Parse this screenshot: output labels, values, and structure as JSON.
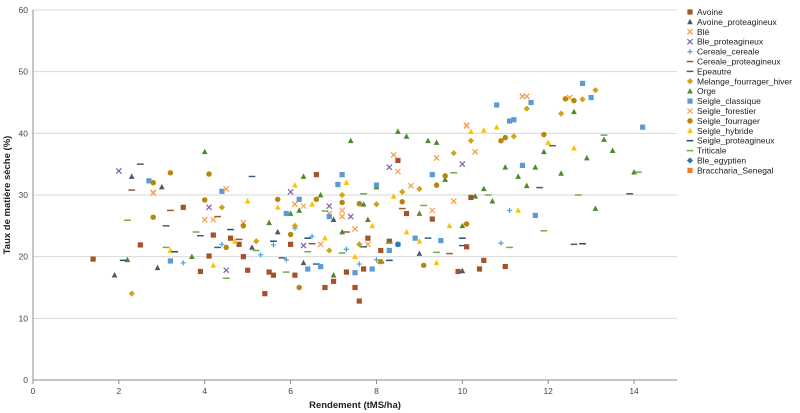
{
  "chart_data": {
    "type": "scatter",
    "xlabel": "Rendement (tMS/ha)",
    "ylabel": "Taux de matière sèche (%)",
    "xlim": [
      0,
      15
    ],
    "ylim": [
      0,
      60
    ],
    "x_ticks": [
      "0",
      "2",
      "4",
      "6",
      "8",
      "10",
      "12",
      "14"
    ],
    "y_ticks": [
      "0",
      "10",
      "20",
      "30",
      "40",
      "50",
      "60"
    ],
    "grid": "horizontal",
    "legend_position": "right",
    "series": [
      {
        "name": "Avoine",
        "color": "#a5522a",
        "marker": "square",
        "points": [
          [
            1.4,
            19.6
          ],
          [
            2.5,
            21.9
          ],
          [
            3.9,
            17.6
          ],
          [
            4.1,
            20.1
          ],
          [
            4.2,
            23.5
          ],
          [
            4.6,
            23.0
          ],
          [
            4.9,
            20.0
          ],
          [
            5.0,
            17.8
          ],
          [
            5.4,
            14.0
          ],
          [
            5.5,
            17.5
          ],
          [
            5.6,
            17.0
          ],
          [
            6.0,
            22.0
          ],
          [
            6.1,
            17.0
          ],
          [
            6.6,
            33.3
          ],
          [
            6.8,
            15.0
          ],
          [
            7.0,
            16.0
          ],
          [
            7.5,
            15.0
          ],
          [
            7.6,
            12.8
          ],
          [
            7.7,
            18.0
          ],
          [
            7.8,
            23.0
          ],
          [
            8.1,
            21.0
          ],
          [
            8.5,
            35.6
          ],
          [
            8.7,
            27.0
          ],
          [
            9.3,
            26.1
          ],
          [
            9.9,
            17.6
          ],
          [
            10.1,
            21.6
          ],
          [
            10.2,
            29.6
          ],
          [
            10.4,
            18.0
          ],
          [
            10.5,
            19.4
          ],
          [
            11.0,
            18.4
          ],
          [
            4.8,
            22.0
          ],
          [
            3.5,
            28.0
          ],
          [
            7.3,
            17.5
          ],
          [
            8.3,
            22.5
          ]
        ]
      },
      {
        "name": "Avoine_proteagineux",
        "color": "#4d5a6e",
        "marker": "triangle",
        "points": [
          [
            1.9,
            17.0
          ],
          [
            2.3,
            33.0
          ],
          [
            2.9,
            18.2
          ],
          [
            3.0,
            31.3
          ],
          [
            5.7,
            24.0
          ],
          [
            6.3,
            19.0
          ],
          [
            7.0,
            26.0
          ],
          [
            9.0,
            20.5
          ],
          [
            10.0,
            17.7
          ],
          [
            5.1,
            21.5
          ]
        ]
      },
      {
        "name": "Blé",
        "color": "#f59a3a",
        "marker": "x",
        "points": [
          [
            2.8,
            30.4
          ],
          [
            4.0,
            26.0
          ],
          [
            4.5,
            31.0
          ],
          [
            4.9,
            25.5
          ],
          [
            6.1,
            28.5
          ],
          [
            6.7,
            22.0
          ],
          [
            6.9,
            27.0
          ],
          [
            7.2,
            26.5
          ],
          [
            7.8,
            22.0
          ],
          [
            8.4,
            36.5
          ],
          [
            8.8,
            31.5
          ],
          [
            9.4,
            36.0
          ],
          [
            10.1,
            41.3
          ],
          [
            10.3,
            37.0
          ],
          [
            11.5,
            46.0
          ],
          [
            12.5,
            45.8
          ],
          [
            7.5,
            24.5
          ],
          [
            9.8,
            29.0
          ]
        ]
      },
      {
        "name": "Ble_proteagineux",
        "color": "#7f5fa8",
        "marker": "x",
        "points": [
          [
            2.0,
            33.9
          ],
          [
            4.1,
            28.0
          ],
          [
            4.5,
            17.8
          ],
          [
            6.0,
            30.5
          ],
          [
            6.3,
            21.8
          ],
          [
            6.9,
            28.2
          ],
          [
            7.4,
            26.5
          ],
          [
            8.3,
            34.5
          ],
          [
            10.0,
            35.0
          ],
          [
            11.4,
            46.0
          ]
        ]
      },
      {
        "name": "Cereale_cereale",
        "color": "#4aa3d8",
        "marker": "plus",
        "points": [
          [
            3.5,
            19.0
          ],
          [
            4.4,
            22.0
          ],
          [
            5.3,
            20.3
          ],
          [
            5.6,
            21.9
          ],
          [
            6.1,
            24.6
          ],
          [
            6.5,
            23.3
          ],
          [
            7.3,
            21.2
          ],
          [
            7.6,
            18.8
          ],
          [
            8.0,
            19.5
          ],
          [
            10.9,
            22.2
          ],
          [
            11.1,
            27.5
          ],
          [
            5.9,
            19.5
          ]
        ]
      },
      {
        "name": "Cereale_proteagineux",
        "color": "#9a5a2a",
        "marker": "dash",
        "points": [
          [
            2.3,
            30.8
          ],
          [
            4.3,
            26.5
          ],
          [
            4.8,
            22.8
          ],
          [
            6.5,
            22.1
          ],
          [
            7.3,
            24.0
          ],
          [
            8.1,
            19.0
          ],
          [
            8.6,
            27.8
          ],
          [
            9.7,
            20.5
          ],
          [
            3.2,
            27.5
          ]
        ]
      },
      {
        "name": "Epeautre",
        "color": "#3f5f7f",
        "marker": "dash",
        "points": [
          [
            2.5,
            35.0
          ],
          [
            3.1,
            25.0
          ],
          [
            3.9,
            23.4
          ],
          [
            4.3,
            21.5
          ],
          [
            5.1,
            33.0
          ],
          [
            5.8,
            19.8
          ],
          [
            6.6,
            18.8
          ],
          [
            7.7,
            21.6
          ],
          [
            9.2,
            23.0
          ],
          [
            10.0,
            21.8
          ],
          [
            12.1,
            38.0
          ],
          [
            12.6,
            22.0
          ],
          [
            13.9,
            30.2
          ],
          [
            11.8,
            31.2
          ]
        ]
      },
      {
        "name": "Melange_fourrager_hiver",
        "color": "#d1a21a",
        "marker": "diamond",
        "points": [
          [
            2.3,
            14.0
          ],
          [
            4.4,
            28.0
          ],
          [
            5.2,
            22.5
          ],
          [
            6.1,
            25.0
          ],
          [
            6.9,
            21.0
          ],
          [
            7.2,
            30.0
          ],
          [
            7.6,
            22.0
          ],
          [
            8.0,
            28.5
          ],
          [
            8.6,
            30.5
          ],
          [
            9.0,
            31.0
          ],
          [
            9.8,
            36.8
          ],
          [
            10.2,
            38.8
          ],
          [
            11.5,
            44.0
          ],
          [
            12.3,
            43.2
          ],
          [
            12.8,
            45.5
          ],
          [
            13.1,
            47.0
          ],
          [
            11.2,
            39.5
          ]
        ]
      },
      {
        "name": "Orge",
        "color": "#4e8a2a",
        "marker": "triangle",
        "points": [
          [
            2.2,
            19.5
          ],
          [
            3.7,
            20.0
          ],
          [
            4.0,
            37.0
          ],
          [
            5.5,
            25.5
          ],
          [
            6.0,
            27.0
          ],
          [
            6.3,
            33.0
          ],
          [
            6.7,
            30.0
          ],
          [
            7.0,
            17.0
          ],
          [
            7.2,
            24.0
          ],
          [
            7.4,
            38.8
          ],
          [
            7.7,
            28.5
          ],
          [
            8.0,
            31.3
          ],
          [
            8.5,
            40.3
          ],
          [
            8.7,
            39.5
          ],
          [
            9.0,
            27.0
          ],
          [
            9.2,
            38.8
          ],
          [
            9.4,
            38.5
          ],
          [
            9.6,
            32.5
          ],
          [
            10.0,
            25.0
          ],
          [
            10.3,
            29.8
          ],
          [
            10.5,
            31.0
          ],
          [
            10.7,
            29.0
          ],
          [
            11.0,
            34.5
          ],
          [
            11.3,
            33.0
          ],
          [
            11.5,
            31.5
          ],
          [
            11.7,
            34.5
          ],
          [
            11.9,
            37.0
          ],
          [
            12.3,
            33.5
          ],
          [
            12.6,
            43.5
          ],
          [
            12.9,
            36.0
          ],
          [
            13.1,
            27.8
          ],
          [
            13.3,
            39.0
          ],
          [
            13.5,
            37.2
          ],
          [
            14.0,
            33.7
          ],
          [
            6.2,
            27.5
          ],
          [
            7.8,
            26.0
          ]
        ]
      },
      {
        "name": "Seigle_classique",
        "color": "#5b9bd5",
        "marker": "square",
        "points": [
          [
            2.7,
            32.3
          ],
          [
            3.2,
            19.3
          ],
          [
            4.4,
            30.6
          ],
          [
            5.9,
            27.0
          ],
          [
            6.2,
            29.3
          ],
          [
            6.7,
            18.4
          ],
          [
            6.9,
            26.5
          ],
          [
            7.1,
            31.7
          ],
          [
            7.2,
            33.3
          ],
          [
            7.5,
            17.4
          ],
          [
            7.9,
            18.0
          ],
          [
            8.0,
            31.6
          ],
          [
            8.5,
            22.0
          ],
          [
            8.9,
            23.0
          ],
          [
            9.3,
            33.3
          ],
          [
            9.5,
            22.6
          ],
          [
            10.8,
            44.6
          ],
          [
            11.1,
            42.0
          ],
          [
            11.2,
            42.2
          ],
          [
            11.4,
            34.8
          ],
          [
            11.6,
            45.0
          ],
          [
            11.7,
            26.7
          ],
          [
            12.8,
            48.1
          ],
          [
            13.0,
            45.8
          ],
          [
            14.2,
            41.0
          ],
          [
            6.4,
            18.0
          ],
          [
            8.3,
            21.0
          ]
        ]
      },
      {
        "name": "Seigle_forestier",
        "color": "#f4a460",
        "marker": "x",
        "points": [
          [
            2.8,
            30.3
          ],
          [
            4.5,
            31.0
          ],
          [
            6.3,
            28.2
          ],
          [
            7.2,
            27.5
          ],
          [
            8.5,
            33.8
          ],
          [
            9.3,
            27.5
          ],
          [
            10.1,
            41.2
          ],
          [
            11.4,
            46.0
          ],
          [
            4.2,
            26.0
          ]
        ]
      },
      {
        "name": "Seigle_fourrager",
        "color": "#b8860b",
        "marker": "circle",
        "points": [
          [
            2.8,
            26.4
          ],
          [
            2.8,
            32.0
          ],
          [
            3.2,
            33.6
          ],
          [
            4.0,
            29.2
          ],
          [
            4.5,
            21.5
          ],
          [
            4.9,
            25.0
          ],
          [
            5.7,
            29.3
          ],
          [
            6.0,
            23.6
          ],
          [
            6.2,
            15.0
          ],
          [
            6.6,
            29.3
          ],
          [
            7.2,
            28.8
          ],
          [
            7.6,
            28.6
          ],
          [
            8.1,
            19.2
          ],
          [
            8.6,
            28.9
          ],
          [
            9.1,
            18.6
          ],
          [
            9.4,
            31.6
          ],
          [
            9.6,
            33.1
          ],
          [
            10.1,
            25.3
          ],
          [
            10.9,
            38.8
          ],
          [
            11.0,
            39.3
          ],
          [
            11.9,
            39.8
          ],
          [
            12.4,
            45.6
          ],
          [
            12.6,
            45.3
          ],
          [
            4.1,
            33.4
          ]
        ]
      },
      {
        "name": "Seigle_hybride",
        "color": "#ffc000",
        "marker": "triangle",
        "points": [
          [
            3.2,
            21.0
          ],
          [
            4.2,
            18.6
          ],
          [
            4.7,
            22.5
          ],
          [
            5.0,
            29.0
          ],
          [
            5.7,
            28.0
          ],
          [
            6.1,
            31.6
          ],
          [
            6.5,
            28.5
          ],
          [
            7.3,
            32.0
          ],
          [
            7.5,
            20.0
          ],
          [
            7.9,
            25.0
          ],
          [
            8.4,
            29.8
          ],
          [
            9.0,
            22.5
          ],
          [
            9.4,
            19.0
          ],
          [
            9.7,
            25.0
          ],
          [
            10.2,
            40.3
          ],
          [
            10.5,
            40.5
          ],
          [
            10.8,
            41.0
          ],
          [
            11.3,
            27.5
          ],
          [
            12.0,
            38.5
          ],
          [
            12.6,
            37.6
          ],
          [
            8.7,
            24.0
          ],
          [
            6.8,
            23.0
          ]
        ]
      },
      {
        "name": "Seigle_proteagineux",
        "color": "#1f4e79",
        "marker": "dash",
        "points": [
          [
            2.1,
            19.4
          ],
          [
            3.3,
            20.8
          ],
          [
            4.6,
            24.4
          ],
          [
            6.4,
            23.0
          ],
          [
            8.3,
            19.4
          ],
          [
            10.0,
            23.0
          ],
          [
            12.8,
            22.1
          ],
          [
            5.6,
            22.5
          ]
        ]
      },
      {
        "name": "Triticale",
        "color": "#70ad47",
        "marker": "dash",
        "points": [
          [
            2.2,
            25.9
          ],
          [
            3.1,
            21.5
          ],
          [
            3.8,
            24.0
          ],
          [
            4.5,
            16.5
          ],
          [
            5.2,
            21.0
          ],
          [
            5.9,
            17.5
          ],
          [
            6.4,
            20.8
          ],
          [
            6.8,
            27.4
          ],
          [
            7.2,
            20.6
          ],
          [
            7.7,
            30.2
          ],
          [
            8.3,
            22.2
          ],
          [
            9.1,
            28.3
          ],
          [
            9.4,
            20.7
          ],
          [
            9.8,
            33.6
          ],
          [
            10.6,
            30.0
          ],
          [
            11.1,
            21.5
          ],
          [
            11.9,
            24.2
          ],
          [
            12.7,
            30.0
          ],
          [
            13.3,
            39.7
          ],
          [
            14.1,
            33.7
          ]
        ]
      },
      {
        "name": "Ble_egyptien",
        "color": "#2e75b6",
        "marker": "diamond",
        "points": [
          [
            8.5,
            22.0
          ]
        ]
      },
      {
        "name": "Braccharia_Senegal",
        "color": "#ed7d31",
        "marker": "square",
        "points": []
      }
    ]
  }
}
